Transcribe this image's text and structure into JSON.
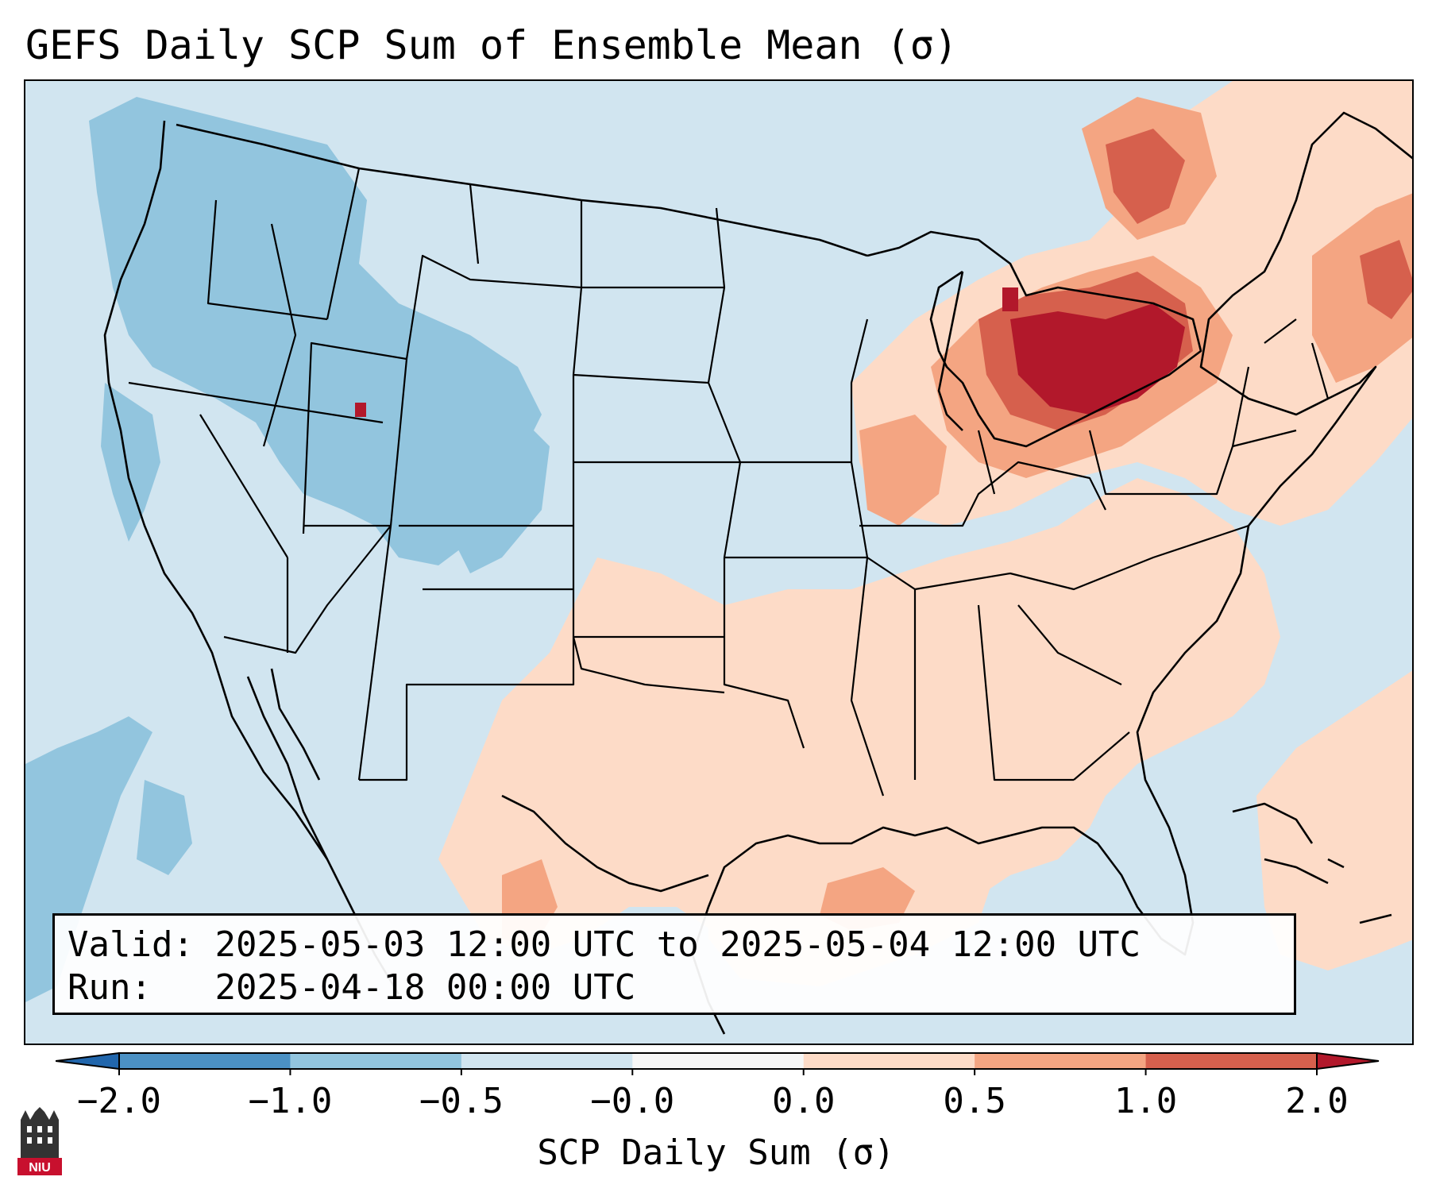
{
  "title": "GEFS Daily SCP Sum of Ensemble Mean (σ)",
  "info": {
    "valid_label": "Valid:",
    "valid_value": "2025-05-03 12:00 UTC to 2025-05-04 12:00 UTC",
    "run_label": "Run:",
    "run_value": "2025-04-18 00:00 UTC"
  },
  "colorbar": {
    "label": "SCP Daily Sum (σ)",
    "ticks": [
      "−2.0",
      "−1.0",
      "−0.5",
      "−0.0",
      "0.0",
      "0.5",
      "1.0",
      "2.0"
    ],
    "colors": [
      "#4b91c4",
      "#92c5de",
      "#d1e5f0",
      "#f7f7f7",
      "#fddbc7",
      "#f4a582",
      "#d6604d"
    ],
    "extend_low_color": "#2166ac",
    "extend_high_color": "#b2182b"
  },
  "map": {
    "background_color": "#d1e5f0",
    "blue_color": "#92c5de",
    "light_red_color": "#fddbc7",
    "mid_red_color": "#f4a582",
    "strong_red_color": "#d6604d",
    "max_red_color": "#b2182b"
  },
  "logo": {
    "text": "NIU"
  }
}
